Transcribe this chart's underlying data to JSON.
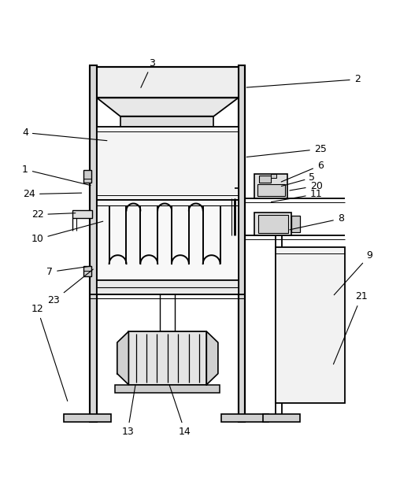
{
  "fig_width": 5.22,
  "fig_height": 6.39,
  "dpi": 100,
  "bg_color": "#ffffff",
  "line_color": "#000000",
  "annotation_fontsize": 9,
  "labels_data": [
    [
      1,
      0.06,
      0.7,
      0.225,
      0.66
    ],
    [
      2,
      0.87,
      0.92,
      0.595,
      0.9
    ],
    [
      3,
      0.37,
      0.96,
      0.34,
      0.895
    ],
    [
      4,
      0.06,
      0.79,
      0.265,
      0.77
    ],
    [
      5,
      0.76,
      0.68,
      0.68,
      0.658
    ],
    [
      6,
      0.78,
      0.71,
      0.68,
      0.668
    ],
    [
      7,
      0.12,
      0.45,
      0.225,
      0.465
    ],
    [
      8,
      0.83,
      0.58,
      0.7,
      0.552
    ],
    [
      9,
      0.9,
      0.49,
      0.81,
      0.39
    ],
    [
      10,
      0.09,
      0.53,
      0.255,
      0.575
    ],
    [
      11,
      0.77,
      0.64,
      0.655,
      0.62
    ],
    [
      12,
      0.09,
      0.36,
      0.165,
      0.13
    ],
    [
      13,
      0.31,
      0.06,
      0.33,
      0.18
    ],
    [
      14,
      0.45,
      0.06,
      0.41,
      0.18
    ],
    [
      20,
      0.77,
      0.66,
      0.7,
      0.648
    ],
    [
      21,
      0.88,
      0.39,
      0.81,
      0.22
    ],
    [
      22,
      0.09,
      0.59,
      0.188,
      0.594
    ],
    [
      23,
      0.13,
      0.38,
      0.23,
      0.46
    ],
    [
      24,
      0.07,
      0.64,
      0.203,
      0.643
    ],
    [
      25,
      0.78,
      0.75,
      0.595,
      0.73
    ]
  ]
}
